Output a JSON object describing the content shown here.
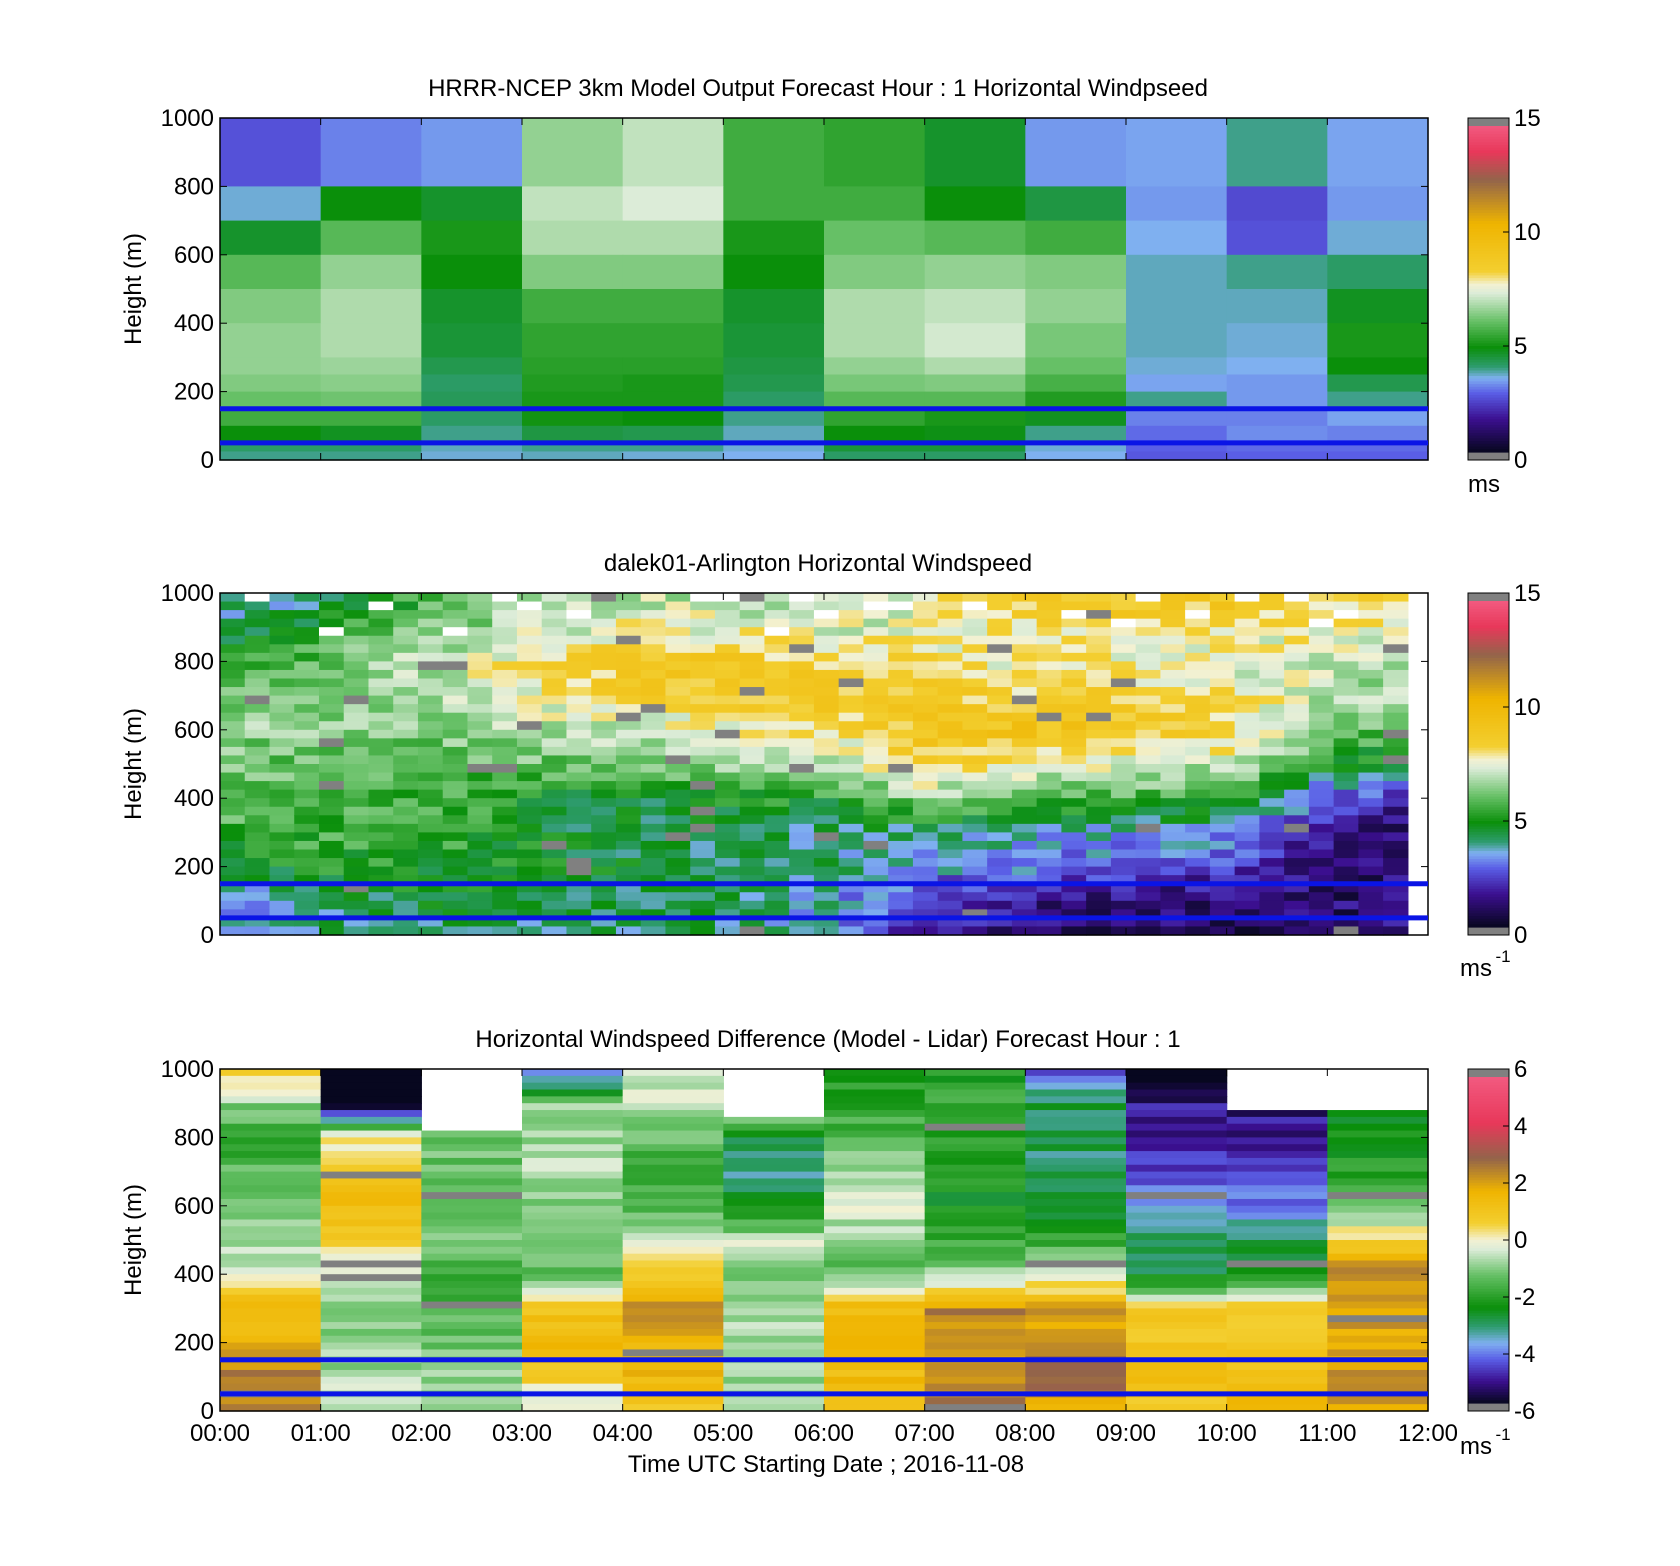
{
  "chart_data": [
    {
      "type": "heatmap",
      "title": "HRRR-NCEP 3km Model Output   Forecast Hour : 1 Horizontal Windpseed",
      "ylabel": "Height (m)",
      "xlabel": "",
      "ylim": [
        0,
        1000
      ],
      "xlim": [
        0,
        12
      ],
      "yticks": [
        "0",
        "200",
        "400",
        "600",
        "800",
        "1000"
      ],
      "colorbar": {
        "min": 0,
        "max": 15,
        "ticks": [
          "0",
          "5",
          "10",
          "15"
        ],
        "unit": "ms"
      },
      "columns": 12,
      "levels": [
        1000,
        800,
        700,
        600,
        500,
        400,
        300,
        250,
        200,
        150,
        100,
        50,
        25
      ],
      "values": [
        [
          2.5,
          3.0,
          3.2,
          6.5,
          7.0,
          5.5,
          5.3,
          4.5,
          3.2,
          3.3,
          3.8,
          3.3
        ],
        [
          3.5,
          4.8,
          4.5,
          7.0,
          7.3,
          5.5,
          5.5,
          4.8,
          4.3,
          3.2,
          2.4,
          3.2
        ],
        [
          4.5,
          5.8,
          5.0,
          6.8,
          6.8,
          5.0,
          6.0,
          5.8,
          5.5,
          3.4,
          2.5,
          3.5
        ],
        [
          5.8,
          6.5,
          4.8,
          6.3,
          6.3,
          4.8,
          6.3,
          6.5,
          6.3,
          3.6,
          3.8,
          4.0
        ],
        [
          6.3,
          6.8,
          4.5,
          5.5,
          5.5,
          4.5,
          6.8,
          7.0,
          6.5,
          3.6,
          3.6,
          4.6
        ],
        [
          6.5,
          6.8,
          4.4,
          5.3,
          5.3,
          4.4,
          6.8,
          7.2,
          6.2,
          3.6,
          3.5,
          5.0
        ],
        [
          6.5,
          6.6,
          4.2,
          5.2,
          5.2,
          4.3,
          6.5,
          6.8,
          6.0,
          3.5,
          3.4,
          4.8
        ],
        [
          6.3,
          6.4,
          4.0,
          5.1,
          5.0,
          4.2,
          6.2,
          6.3,
          5.6,
          3.3,
          3.2,
          4.2
        ],
        [
          6.0,
          6.1,
          4.1,
          5.0,
          5.0,
          4.0,
          5.8,
          5.8,
          5.1,
          3.8,
          3.2,
          3.8
        ],
        [
          5.5,
          5.5,
          4.0,
          4.9,
          4.8,
          3.8,
          5.3,
          5.0,
          4.6,
          3.0,
          3.0,
          3.3
        ],
        [
          4.8,
          4.6,
          3.8,
          4.3,
          4.2,
          3.6,
          4.8,
          4.7,
          3.8,
          2.8,
          3.1,
          3.0
        ],
        [
          4.0,
          4.0,
          3.6,
          3.8,
          3.8,
          3.5,
          4.4,
          4.4,
          3.5,
          2.7,
          2.8,
          2.8
        ],
        [
          3.8,
          3.8,
          3.5,
          3.6,
          3.5,
          3.4,
          4.0,
          4.0,
          3.4,
          2.6,
          2.7,
          2.7
        ]
      ],
      "reference_lines": [
        50,
        150
      ]
    },
    {
      "type": "heatmap",
      "title": "dalek01-Arlington  Horizontal Windspeed",
      "ylabel": "Height (m)",
      "xlabel": "",
      "ylim": [
        0,
        1000
      ],
      "xlim": [
        0,
        12
      ],
      "yticks": [
        "0",
        "200",
        "400",
        "600",
        "800",
        "1000"
      ],
      "colorbar": {
        "min": 0,
        "max": 15,
        "ticks": [
          "0",
          "5",
          "10",
          "15"
        ],
        "unit": "ms",
        "unit_exp": "-1"
      },
      "columns": 48,
      "rows": 40,
      "hourly_profile_heights": [
        975,
        900,
        800,
        700,
        600,
        500,
        400,
        300,
        200,
        100,
        25
      ],
      "hourly_profiles": [
        [
          3.5,
          3.8,
          5.0,
          6.0,
          6.5,
          6.3,
          6.0,
          5.5,
          4.5,
          3.0,
          3.0
        ],
        [
          3.8,
          5.0,
          6.0,
          6.5,
          6.3,
          5.8,
          5.5,
          5.5,
          5.0,
          4.2,
          4.0
        ],
        [
          5.5,
          6.0,
          7.0,
          6.8,
          6.3,
          5.8,
          5.5,
          5.6,
          5.0,
          4.5,
          4.2
        ],
        [
          6.5,
          7.0,
          8.0,
          7.5,
          6.8,
          6.0,
          5.0,
          4.8,
          4.8,
          4.5,
          4.0
        ],
        [
          7.0,
          7.5,
          8.8,
          8.5,
          7.0,
          6.0,
          4.5,
          4.2,
          4.5,
          4.3,
          4.0
        ],
        [
          7.0,
          7.5,
          8.8,
          9.0,
          7.5,
          6.5,
          5.0,
          4.2,
          4.3,
          4.2,
          4.0
        ],
        [
          7.0,
          7.2,
          8.5,
          8.8,
          8.0,
          7.0,
          5.0,
          3.8,
          4.0,
          3.5,
          3.5
        ],
        [
          7.5,
          7.5,
          8.0,
          8.5,
          9.0,
          8.3,
          6.5,
          4.0,
          3.5,
          1.8,
          1.8
        ],
        [
          8.8,
          8.0,
          7.5,
          8.5,
          9.2,
          8.0,
          5.8,
          3.8,
          3.0,
          1.5,
          1.3
        ],
        [
          9.0,
          8.2,
          7.5,
          8.5,
          8.8,
          7.3,
          5.5,
          3.5,
          2.5,
          1.2,
          1.0
        ],
        [
          8.8,
          8.0,
          7.3,
          8.0,
          8.5,
          7.0,
          5.5,
          3.5,
          2.0,
          1.0,
          0.8
        ],
        [
          8.5,
          7.8,
          7.0,
          7.0,
          6.5,
          5.0,
          2.5,
          1.5,
          1.2,
          1.0,
          1.0
        ],
        [
          8.0,
          7.5,
          6.5,
          6.5,
          5.5,
          4.0,
          1.5,
          1.0,
          1.0,
          1.2,
          1.5
        ]
      ],
      "reference_lines": [
        50,
        150
      ]
    },
    {
      "type": "heatmap",
      "title": "Horizontal Windspeed Difference (Model - Lidar) Forecast Hour : 1",
      "ylabel": "Height (m)",
      "xlabel": "Time UTC  Starting Date ; 2016-11-08",
      "ylim": [
        0,
        1000
      ],
      "xlim": [
        0,
        12
      ],
      "yticks": [
        "0",
        "200",
        "400",
        "600",
        "800",
        "1000"
      ],
      "xticks": [
        "00:00",
        "01:00",
        "02:00",
        "03:00",
        "04:00",
        "05:00",
        "06:00",
        "07:00",
        "08:00",
        "09:00",
        "10:00",
        "11:00",
        "12:00"
      ],
      "colorbar": {
        "min": -6,
        "max": 6,
        "ticks": [
          "-6",
          "-4",
          "-2",
          "0",
          "2",
          "4",
          "6"
        ],
        "unit": "ms",
        "unit_exp": "-1"
      },
      "columns": 12,
      "rows": 50,
      "column_top_heights": [
        1000,
        1000,
        820,
        1000,
        1000,
        860,
        1000,
        1000,
        1000,
        1000,
        870,
        870
      ],
      "column_profile_heights": [
        975,
        900,
        800,
        700,
        600,
        500,
        400,
        300,
        200,
        100,
        25
      ],
      "column_profiles": [
        [
          0.6,
          -1.0,
          -2.0,
          -1.5,
          -0.8,
          -1.0,
          -0.3,
          1.8,
          1.5,
          2.8,
          2.5
        ],
        [
          -6.3,
          -6.3,
          0.0,
          0.8,
          1.5,
          1.0,
          -0.5,
          -0.8,
          -1.0,
          -0.8,
          -0.5
        ],
        [
          0.0,
          0.0,
          -1.2,
          -1.3,
          -1.5,
          -1.0,
          -1.8,
          -1.5,
          -1.2,
          -1.0,
          -1.0
        ],
        [
          -4.0,
          -1.0,
          -0.8,
          -0.6,
          -1.0,
          -1.2,
          -1.5,
          1.0,
          1.5,
          0.8,
          -0.5
        ],
        [
          -0.3,
          -0.6,
          -1.3,
          -2.0,
          -1.5,
          -0.3,
          0.5,
          2.3,
          1.8,
          1.5,
          1.0
        ],
        [
          0.0,
          0.0,
          -2.8,
          -3.2,
          -2.8,
          -0.5,
          -1.0,
          -0.8,
          -0.8,
          -0.8,
          -0.8
        ],
        [
          -2.2,
          -2.0,
          -1.5,
          -0.6,
          -0.3,
          -1.0,
          -1.5,
          1.5,
          1.5,
          1.5,
          1.0
        ],
        [
          -2.3,
          -2.0,
          -2.2,
          -2.2,
          -2.5,
          -2.0,
          -1.0,
          2.5,
          2.3,
          2.5,
          2.8
        ],
        [
          -4.3,
          -3.0,
          -3.0,
          -3.2,
          -3.0,
          -2.0,
          -0.5,
          2.0,
          2.0,
          3.5,
          2.0
        ],
        [
          -6.5,
          -5.2,
          -5.0,
          -4.5,
          -3.8,
          -3.0,
          -3.0,
          0.8,
          1.0,
          1.5,
          1.0
        ],
        [
          0.0,
          -5.3,
          -5.2,
          -5.0,
          -4.0,
          -3.0,
          -2.5,
          1.0,
          1.0,
          1.3,
          1.5
        ],
        [
          0.0,
          -2.5,
          -2.5,
          -2.2,
          -1.5,
          0.5,
          2.5,
          2.3,
          1.8,
          2.5,
          2.0
        ]
      ],
      "reference_lines": [
        50,
        150
      ]
    }
  ],
  "colormaps": {
    "windspeed": [
      [
        0.0,
        "#07071f"
      ],
      [
        1.5,
        "#3b0f8f"
      ],
      [
        2.7,
        "#5a5ee6"
      ],
      [
        3.4,
        "#7fb0f0"
      ],
      [
        3.9,
        "#2f9c70"
      ],
      [
        4.8,
        "#0a8f0a"
      ],
      [
        6.0,
        "#66c066"
      ],
      [
        7.3,
        "#dcecd8"
      ],
      [
        7.7,
        "#f3f1d2"
      ],
      [
        8.3,
        "#f3cf30"
      ],
      [
        10.5,
        "#efb400"
      ],
      [
        12.5,
        "#93644a"
      ],
      [
        13.8,
        "#e8385a"
      ],
      [
        15.0,
        "#f25a80"
      ]
    ],
    "difference": [
      [
        -6.0,
        "#07071f"
      ],
      [
        -5.2,
        "#3b0f8f"
      ],
      [
        -4.4,
        "#5a5ee6"
      ],
      [
        -3.8,
        "#7fb0f0"
      ],
      [
        -3.2,
        "#2f9c70"
      ],
      [
        -2.5,
        "#0a8f0a"
      ],
      [
        -1.3,
        "#66c066"
      ],
      [
        -0.35,
        "#dcecd8"
      ],
      [
        0.0,
        "#f3f1d2"
      ],
      [
        0.6,
        "#f3cf30"
      ],
      [
        1.8,
        "#efb400"
      ],
      [
        3.0,
        "#93644a"
      ],
      [
        4.3,
        "#e8385a"
      ],
      [
        6.0,
        "#f25a80"
      ]
    ],
    "out_of_range_color": "#808080",
    "reference_line_color": "#0a14e6"
  }
}
